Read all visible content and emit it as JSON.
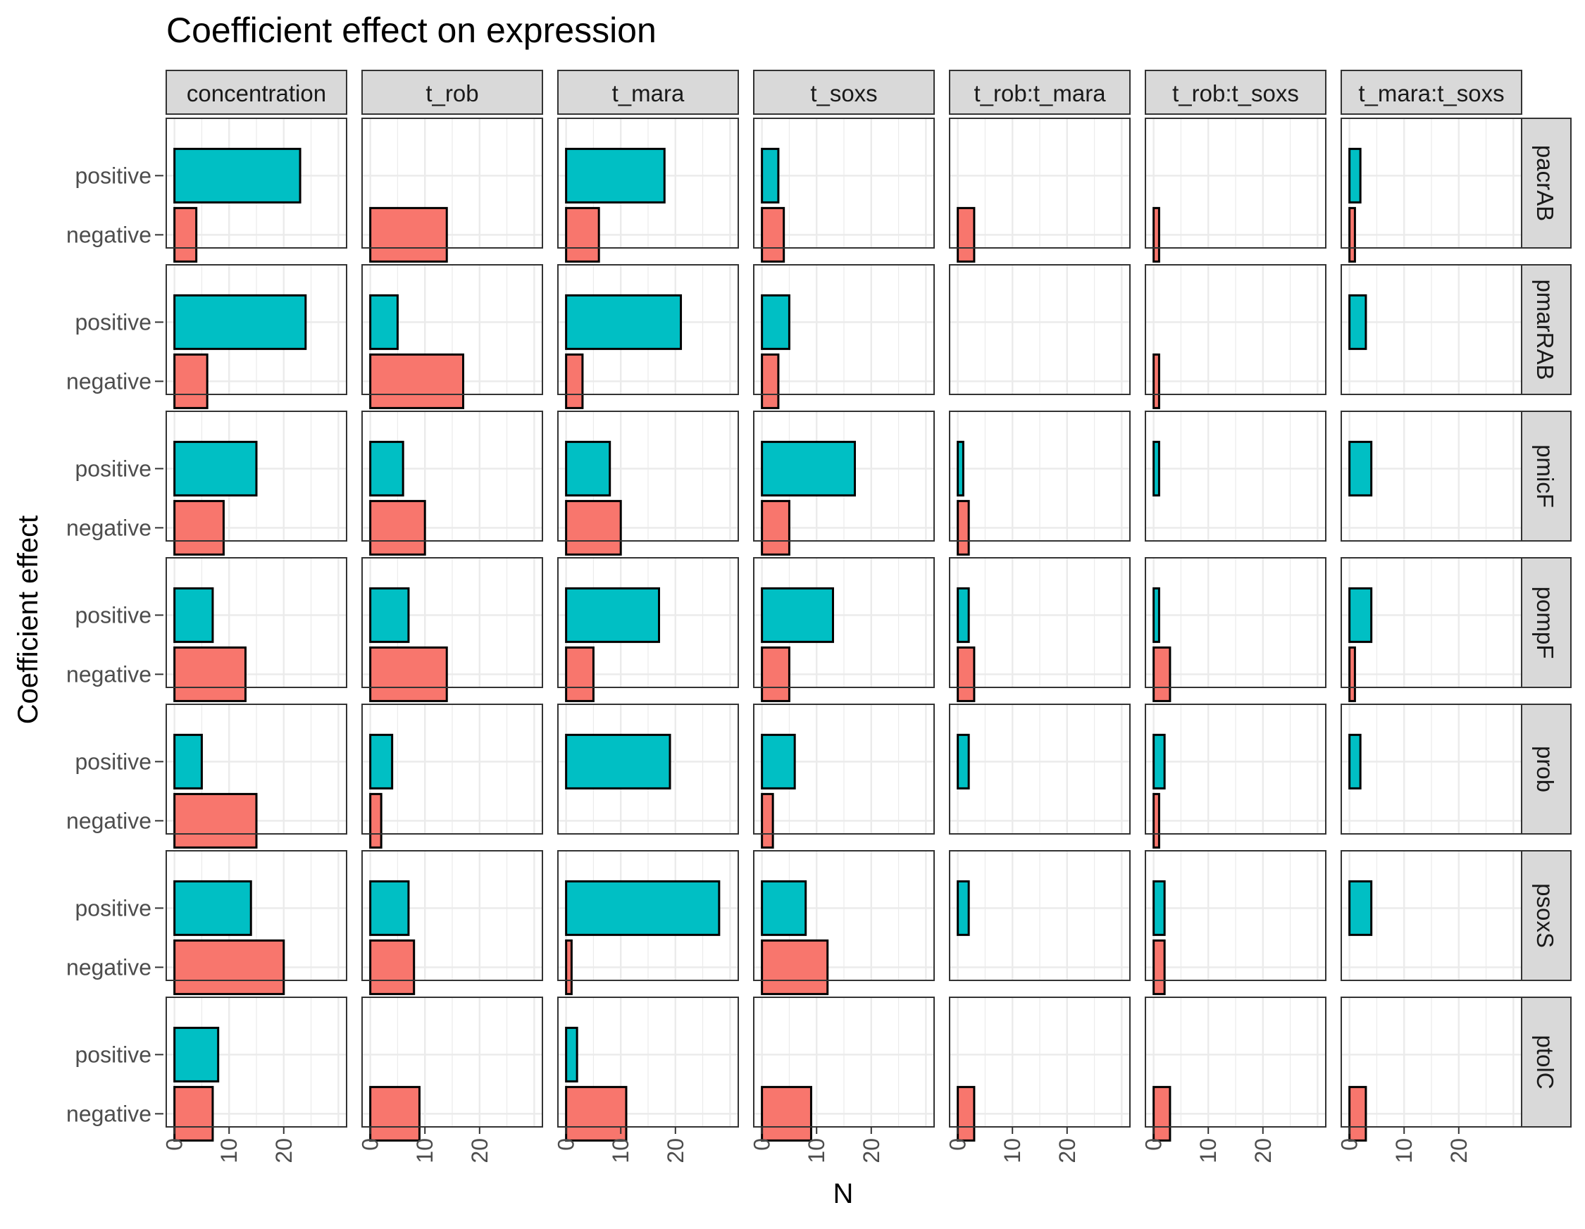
{
  "chart_data": {
    "type": "bar",
    "orientation": "horizontal",
    "layout": "faceted grid",
    "title": "Coefficient effect on expression",
    "xlabel": "N",
    "ylabel": "Coefficient effect",
    "xlim": [
      -1.5,
      31.5
    ],
    "x_ticks": [
      0,
      10,
      20
    ],
    "categories": [
      "positive",
      "negative"
    ],
    "colors": {
      "positive": "#00BFC4",
      "negative": "#F8766D",
      "bar_outline": "#000000",
      "strip_fill": "#d9d9d9",
      "grid": "#ebebeb",
      "panel_border": "#333333"
    },
    "legend": "none",
    "grid": true,
    "column_facets": [
      "concentration",
      "t_rob",
      "t_mara",
      "t_soxs",
      "t_rob:t_mara",
      "t_rob:t_soxs",
      "t_mara:t_soxs"
    ],
    "row_facets": [
      "pacrAB",
      "pmarRAB",
      "pmicF",
      "pompF",
      "prob",
      "psoxS",
      "ptolC"
    ],
    "values": {
      "pacrAB": {
        "positive": [
          23,
          0,
          18,
          3,
          0,
          0,
          2
        ],
        "negative": [
          4,
          14,
          6,
          4,
          3,
          1,
          1
        ]
      },
      "pmarRAB": {
        "positive": [
          24,
          5,
          21,
          5,
          0,
          0,
          3
        ],
        "negative": [
          6,
          17,
          3,
          3,
          0,
          1,
          0
        ]
      },
      "pmicF": {
        "positive": [
          15,
          6,
          8,
          17,
          1,
          1,
          4
        ],
        "negative": [
          9,
          10,
          10,
          5,
          2,
          0,
          0
        ]
      },
      "pompF": {
        "positive": [
          7,
          7,
          17,
          13,
          2,
          1,
          4
        ],
        "negative": [
          13,
          14,
          5,
          5,
          3,
          3,
          1
        ]
      },
      "prob": {
        "positive": [
          5,
          4,
          19,
          6,
          2,
          2,
          2
        ],
        "negative": [
          15,
          2,
          0,
          2,
          0,
          1,
          0
        ]
      },
      "psoxS": {
        "positive": [
          14,
          7,
          28,
          8,
          2,
          2,
          4
        ],
        "negative": [
          20,
          8,
          1,
          12,
          0,
          2,
          0
        ]
      },
      "ptolC": {
        "positive": [
          8,
          0,
          2,
          0,
          0,
          0,
          0
        ],
        "negative": [
          7,
          9,
          11,
          9,
          3,
          3,
          3
        ]
      }
    }
  }
}
